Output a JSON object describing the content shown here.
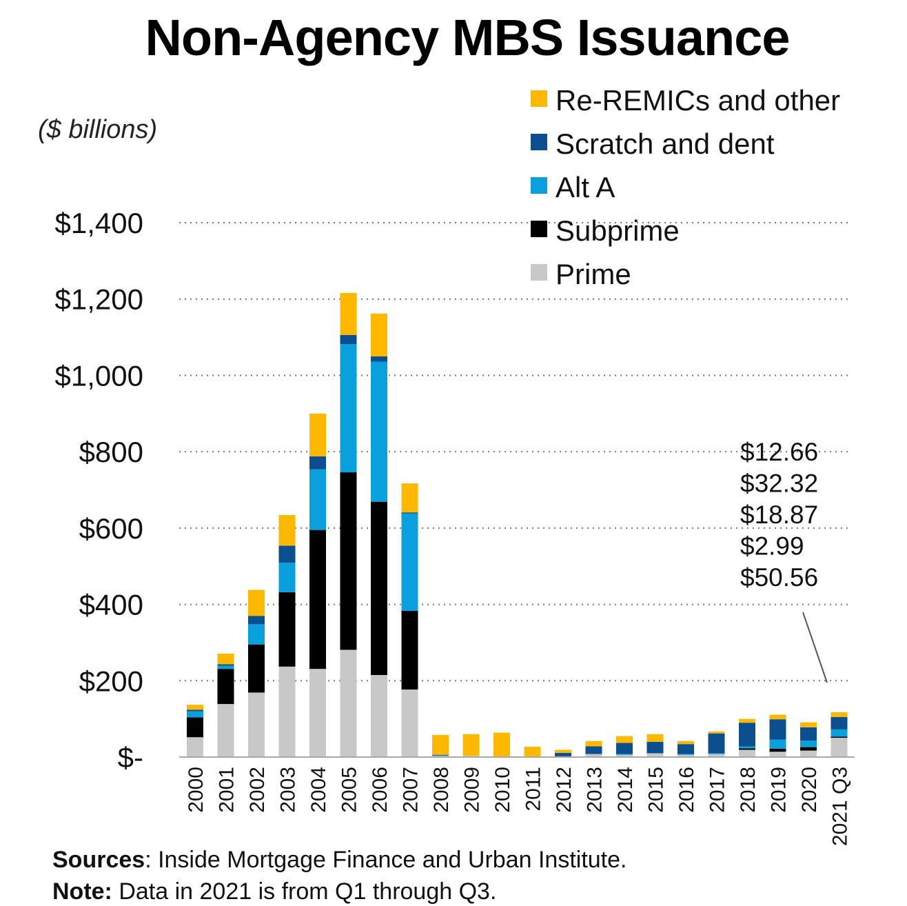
{
  "chart_data": {
    "type": "bar",
    "stacked": true,
    "title": "Non-Agency MBS Issuance",
    "ylabel": "($ billions)",
    "xlabel": "",
    "ylim": [
      0,
      1400
    ],
    "yticks": [
      0,
      200,
      400,
      600,
      800,
      1000,
      1200,
      1400
    ],
    "ytick_labels": [
      "$-",
      "$200",
      "$400",
      "$600",
      "$800",
      "$1,000",
      "$1,200",
      "$1,400"
    ],
    "grid": "horizontal dotted",
    "legend_position": "top-right",
    "categories": [
      "2000",
      "2001",
      "2002",
      "2003",
      "2004",
      "2005",
      "2006",
      "2007",
      "2008",
      "2009",
      "2010",
      "2011",
      "2012",
      "2013",
      "2014",
      "2015",
      "2016",
      "2017",
      "2018",
      "2019",
      "2020",
      "2021 Q3"
    ],
    "series": [
      {
        "name": "Prime",
        "color": "#C8C8C8",
        "values": [
          52,
          139,
          169,
          237,
          231,
          281,
          215,
          177,
          3,
          3,
          1,
          1,
          2,
          8,
          6,
          10,
          6,
          8,
          19,
          14,
          17,
          50.56
        ]
      },
      {
        "name": "Subprime",
        "color": "#000000",
        "values": [
          52,
          92,
          126,
          195,
          364,
          465,
          454,
          206,
          0,
          0,
          0,
          0,
          0,
          0,
          0,
          0,
          0,
          0,
          4,
          8,
          9,
          2.99
        ]
      },
      {
        "name": "Alt A",
        "color": "#0AA0DD",
        "values": [
          16,
          8,
          53,
          77,
          159,
          336,
          367,
          255,
          1,
          0,
          0,
          0,
          0,
          0,
          2,
          0,
          2,
          2,
          5,
          24,
          17,
          18.87
        ]
      },
      {
        "name": "Scratch and dent",
        "color": "#0B4F8F",
        "values": [
          4,
          4,
          22,
          45,
          34,
          24,
          14,
          3,
          2,
          0,
          0,
          0,
          9,
          20,
          29,
          30,
          26,
          52,
          62,
          53,
          35,
          32.32
        ]
      },
      {
        "name": "Re-REMICs and other",
        "color": "#FFB800",
        "values": [
          13,
          28,
          68,
          80,
          112,
          110,
          112,
          76,
          52,
          57,
          63,
          26,
          8,
          14,
          18,
          20,
          8,
          5,
          10,
          12,
          13,
          12.66
        ]
      }
    ],
    "legend_order": [
      "Re-REMICs and other",
      "Scratch and dent",
      "Alt A",
      "Subprime",
      "Prime"
    ],
    "annotation": {
      "target": "2021 Q3",
      "lines": [
        "$12.66",
        "$32.32",
        "$18.87",
        "$2.99",
        "$50.56"
      ]
    }
  },
  "footnotes": {
    "sources_label": "Sources",
    "sources_text": ": Inside Mortgage Finance and Urban Institute.",
    "note_label": "Note:",
    "note_text": " Data in 2021 is from Q1 through Q3."
  }
}
